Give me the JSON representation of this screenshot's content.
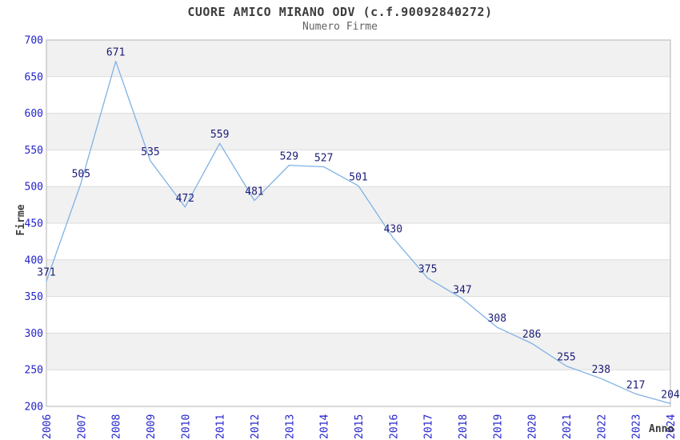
{
  "header": {
    "title": "CUORE AMICO MIRANO ODV (c.f.90092840272)",
    "subtitle": "Numero Firme"
  },
  "chart_data": {
    "type": "line",
    "title": "CUORE AMICO MIRANO ODV (c.f.90092840272)",
    "subtitle": "Numero Firme",
    "xlabel": "Anno",
    "ylabel": "Firme",
    "categories": [
      "2006",
      "2007",
      "2008",
      "2009",
      "2010",
      "2011",
      "2012",
      "2013",
      "2014",
      "2015",
      "2016",
      "2017",
      "2018",
      "2019",
      "2020",
      "2021",
      "2022",
      "2023",
      "2024"
    ],
    "series": [
      {
        "name": "Numero Firme",
        "values": [
          371,
          505,
          671,
          535,
          472,
          559,
          481,
          529,
          527,
          501,
          430,
          375,
          347,
          308,
          286,
          255,
          238,
          217,
          204
        ]
      }
    ],
    "data_labels": true,
    "ylim": [
      200,
      700
    ],
    "ytick_step": 50,
    "grid": true,
    "legend_position": "none",
    "band_fill": "alternating",
    "colors": {
      "line": "#7fb2e5",
      "tick_label": "#2323cc",
      "data_label": "#1b1b78",
      "band": "#f1f1f1",
      "grid_line": "#dcdcdc",
      "plot_border": "#b3b3b3",
      "title_text": "#3c3c3c",
      "subtitle_text": "#636363",
      "axis_title_text": "#3c3c3c",
      "background": "#ffffff"
    }
  }
}
